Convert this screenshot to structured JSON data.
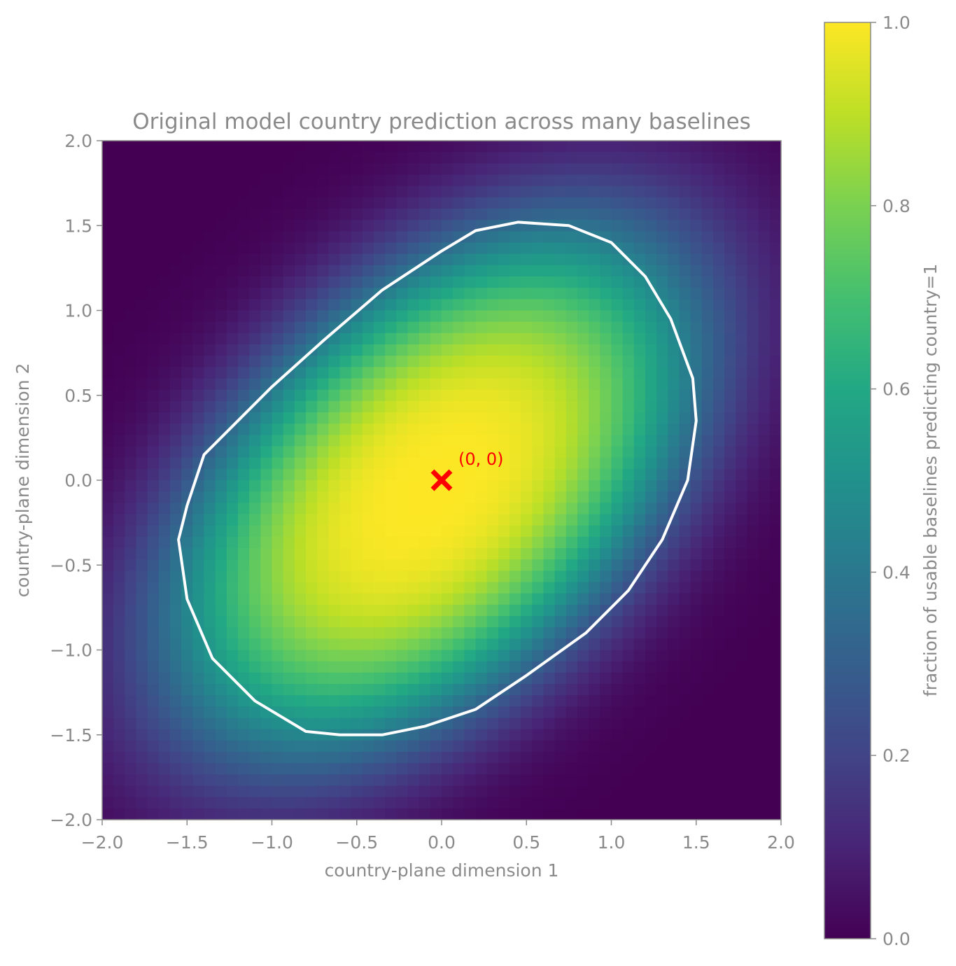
{
  "chart_data": {
    "type": "heatmap",
    "title": "Original model country prediction across many baselines",
    "xlabel": "country-plane dimension 1",
    "ylabel": "country-plane dimension 2",
    "xlim": [
      -2.0,
      2.0
    ],
    "ylim": [
      -2.0,
      2.0
    ],
    "x_ticks": [
      "−2.0",
      "−1.5",
      "−1.0",
      "−0.5",
      "0.0",
      "0.5",
      "1.0",
      "1.5",
      "2.0"
    ],
    "y_ticks": [
      "−2.0",
      "−1.5",
      "−1.0",
      "−0.5",
      "0.0",
      "0.5",
      "1.0",
      "1.5",
      "2.0"
    ],
    "x_tick_values": [
      -2.0,
      -1.5,
      -1.0,
      -0.5,
      0.0,
      0.5,
      1.0,
      1.5,
      2.0
    ],
    "y_tick_values": [
      -2.0,
      -1.5,
      -1.0,
      -0.5,
      0.0,
      0.5,
      1.0,
      1.5,
      2.0
    ],
    "colormap": "viridis",
    "colorbar": {
      "label": "fraction of usable baselines predicting country=1",
      "range": [
        0.0,
        1.0
      ],
      "ticks": [
        "0.0",
        "0.2",
        "0.4",
        "0.6",
        "0.8",
        "1.0"
      ],
      "tick_values": [
        0.0,
        0.2,
        0.4,
        0.6,
        0.8,
        1.0
      ]
    },
    "field_model": {
      "description_units": "data units",
      "center": [
        -0.05,
        -0.05
      ],
      "major_axis_angle_deg": 45,
      "semi_axes": [
        1.7,
        1.0
      ],
      "peak_value": 1.0
    },
    "contour": {
      "level": 0.5,
      "color": "#ffffff",
      "points": [
        [
          -1.4,
          0.15
        ],
        [
          -1.2,
          0.35
        ],
        [
          -1.0,
          0.55
        ],
        [
          -0.7,
          0.82
        ],
        [
          -0.35,
          1.12
        ],
        [
          0.0,
          1.35
        ],
        [
          0.2,
          1.47
        ],
        [
          0.45,
          1.52
        ],
        [
          0.75,
          1.5
        ],
        [
          1.0,
          1.4
        ],
        [
          1.2,
          1.2
        ],
        [
          1.35,
          0.95
        ],
        [
          1.48,
          0.6
        ],
        [
          1.5,
          0.35
        ],
        [
          1.45,
          0.0
        ],
        [
          1.3,
          -0.35
        ],
        [
          1.1,
          -0.65
        ],
        [
          0.85,
          -0.9
        ],
        [
          0.5,
          -1.15
        ],
        [
          0.2,
          -1.35
        ],
        [
          -0.1,
          -1.45
        ],
        [
          -0.35,
          -1.5
        ],
        [
          -0.6,
          -1.5
        ],
        [
          -0.8,
          -1.48
        ],
        [
          -1.1,
          -1.3
        ],
        [
          -1.35,
          -1.05
        ],
        [
          -1.5,
          -0.7
        ],
        [
          -1.55,
          -0.35
        ],
        [
          -1.5,
          -0.15
        ]
      ]
    },
    "marker": {
      "x": 0.0,
      "y": 0.0,
      "symbol": "x",
      "color": "#ff0000",
      "label": "(0, 0)"
    }
  }
}
